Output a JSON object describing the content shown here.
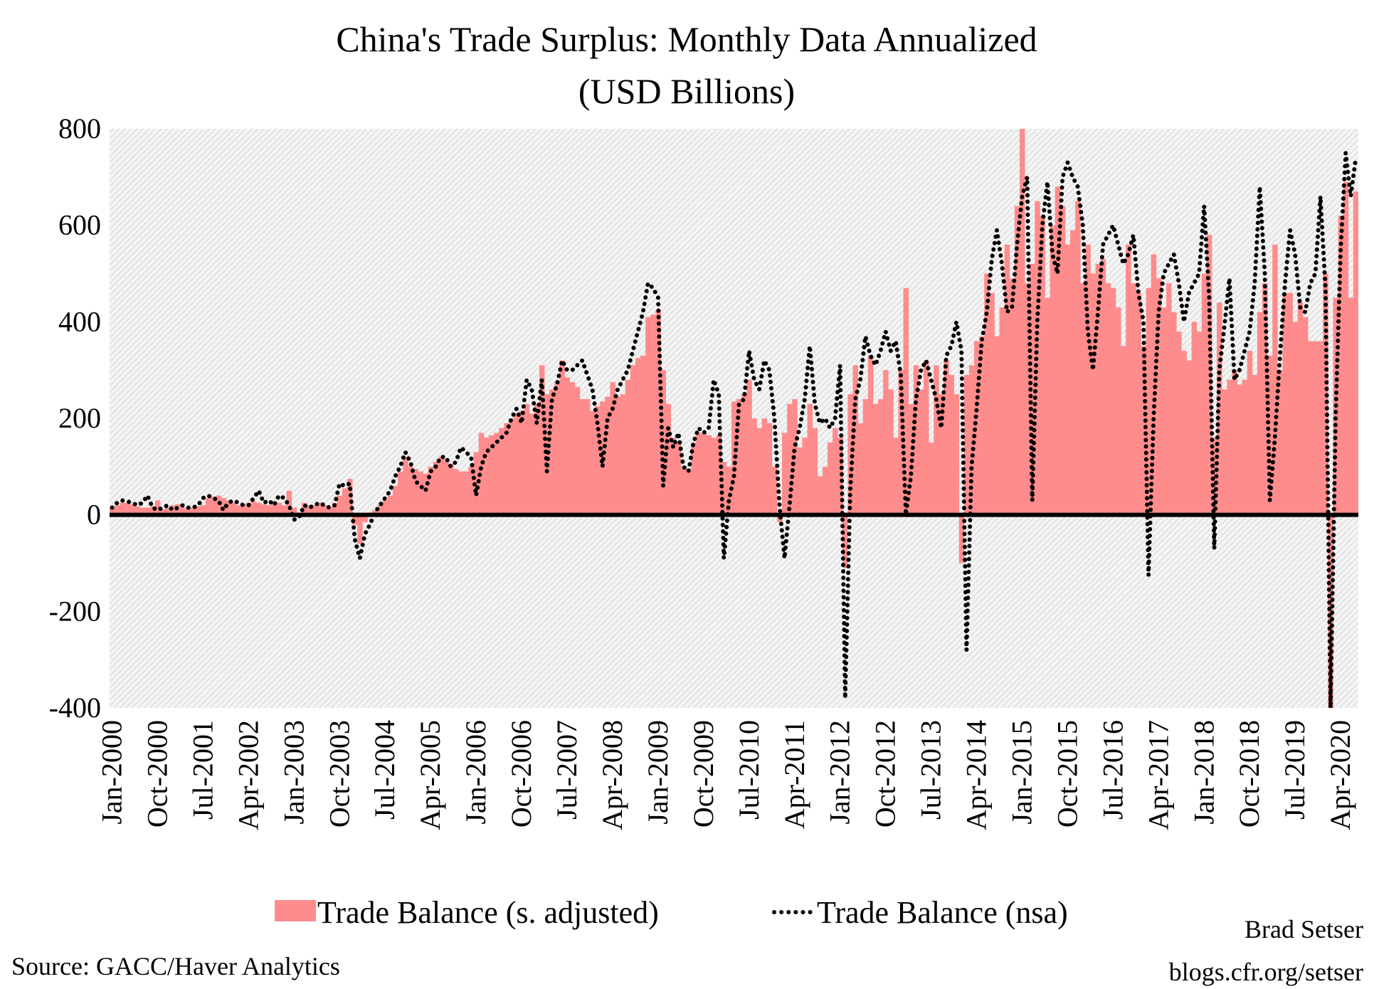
{
  "chart_data": {
    "type": "bar+line",
    "title": "China's Trade Surplus: Monthly Data Annualized",
    "subtitle": "(USD Billions)",
    "xlabel": "",
    "ylabel": "",
    "ylim": [
      -400,
      800
    ],
    "yticks": [
      800,
      600,
      400,
      200,
      0,
      -200,
      -400
    ],
    "x_start": "Jan-2000",
    "x_end": "Jul-2020",
    "xtick_labels": [
      "Jan-2000",
      "Oct-2000",
      "Jul-2001",
      "Apr-2002",
      "Jan-2003",
      "Oct-2003",
      "Jul-2004",
      "Apr-2005",
      "Jan-2006",
      "Oct-2006",
      "Jul-2007",
      "Apr-2008",
      "Jan-2009",
      "Oct-2009",
      "Jul-2010",
      "Apr-2011",
      "Jan-2012",
      "Oct-2012",
      "Jul-2013",
      "Apr-2014",
      "Jan-2015",
      "Oct-2015",
      "Jul-2016",
      "Apr-2017",
      "Jan-2018",
      "Oct-2018",
      "Jul-2019",
      "Apr-2020"
    ],
    "grid": false,
    "legend_position": "bottom",
    "series": [
      {
        "name": "Trade Balance (s. adjusted)",
        "kind": "bar",
        "color": "#FF8C8C",
        "values": [
          15,
          20,
          25,
          25,
          22,
          18,
          15,
          15,
          18,
          30,
          12,
          15,
          20,
          22,
          15,
          12,
          15,
          18,
          20,
          35,
          38,
          40,
          35,
          30,
          25,
          20,
          22,
          25,
          28,
          25,
          22,
          20,
          22,
          25,
          20,
          50,
          15,
          5,
          25,
          20,
          20,
          25,
          20,
          15,
          25,
          40,
          55,
          75,
          -20,
          -60,
          -15,
          5,
          10,
          20,
          30,
          40,
          60,
          90,
          120,
          100,
          95,
          90,
          85,
          100,
          110,
          120,
          115,
          105,
          95,
          90,
          90,
          100,
          130,
          170,
          160,
          165,
          170,
          180,
          190,
          200,
          210,
          215,
          230,
          210,
          230,
          310,
          250,
          260,
          275,
          320,
          285,
          275,
          265,
          240,
          240,
          215,
          225,
          235,
          245,
          275,
          245,
          250,
          280,
          310,
          325,
          330,
          410,
          415,
          425,
          300,
          230,
          160,
          150,
          100,
          95,
          150,
          170,
          170,
          165,
          160,
          165,
          110,
          100,
          235,
          240,
          250,
          280,
          200,
          180,
          200,
          190,
          100,
          -15,
          170,
          230,
          240,
          140,
          160,
          230,
          180,
          80,
          100,
          150,
          180,
          160,
          -110,
          250,
          310,
          190,
          240,
          330,
          230,
          240,
          300,
          260,
          160,
          300,
          470,
          230,
          310,
          260,
          320,
          150,
          310,
          250,
          320,
          290,
          250,
          -100,
          290,
          310,
          360,
          370,
          500,
          460,
          370,
          430,
          560,
          490,
          640,
          800,
          480,
          520,
          650,
          620,
          450,
          600,
          680,
          640,
          560,
          590,
          650,
          480,
          560,
          500,
          520,
          530,
          480,
          470,
          430,
          350,
          560,
          480,
          460,
          350,
          470,
          540,
          490,
          430,
          480,
          420,
          380,
          340,
          320,
          400,
          380,
          500,
          580,
          160,
          440,
          260,
          280,
          300,
          270,
          280,
          340,
          290,
          420,
          480,
          330,
          560,
          300,
          460,
          460,
          400,
          440,
          410,
          360,
          360,
          360,
          500,
          -400,
          450,
          620,
          690,
          450,
          670
        ]
      },
      {
        "name": "Trade Balance (nsa)",
        "kind": "dotted-line",
        "color": "#000000",
        "values": [
          15,
          25,
          30,
          28,
          25,
          20,
          25,
          40,
          15,
          10,
          15,
          20,
          10,
          15,
          20,
          15,
          15,
          20,
          35,
          40,
          35,
          30,
          10,
          25,
          30,
          25,
          20,
          20,
          35,
          50,
          25,
          30,
          20,
          40,
          35,
          20,
          -10,
          -5,
          20,
          15,
          20,
          25,
          20,
          15,
          20,
          65,
          60,
          65,
          -50,
          -90,
          -40,
          -20,
          5,
          20,
          35,
          50,
          80,
          100,
          130,
          110,
          70,
          60,
          50,
          90,
          100,
          120,
          120,
          100,
          110,
          140,
          130,
          120,
          40,
          100,
          130,
          140,
          150,
          160,
          170,
          200,
          220,
          190,
          280,
          260,
          190,
          280,
          90,
          240,
          270,
          320,
          300,
          300,
          310,
          320,
          290,
          260,
          190,
          100,
          200,
          220,
          260,
          280,
          300,
          340,
          380,
          420,
          480,
          470,
          450,
          60,
          180,
          140,
          170,
          100,
          90,
          150,
          180,
          170,
          180,
          280,
          250,
          -90,
          30,
          80,
          230,
          240,
          340,
          280,
          260,
          320,
          300,
          200,
          20,
          -90,
          20,
          140,
          180,
          240,
          350,
          230,
          190,
          200,
          180,
          200,
          310,
          -380,
          50,
          240,
          280,
          370,
          330,
          310,
          340,
          380,
          340,
          360,
          290,
          0,
          80,
          240,
          300,
          320,
          280,
          240,
          180,
          330,
          350,
          400,
          340,
          -280,
          100,
          220,
          360,
          420,
          530,
          590,
          520,
          420,
          430,
          560,
          660,
          700,
          30,
          400,
          600,
          690,
          540,
          500,
          700,
          730,
          700,
          680,
          600,
          380,
          300,
          420,
          560,
          580,
          600,
          560,
          520,
          540,
          580,
          460,
          400,
          -125,
          200,
          420,
          500,
          520,
          540,
          480,
          400,
          460,
          480,
          500,
          640,
          450,
          -70,
          300,
          390,
          490,
          280,
          300,
          340,
          380,
          480,
          680,
          500,
          30,
          160,
          330,
          480,
          590,
          540,
          430,
          420,
          480,
          500,
          660,
          470,
          -400,
          200,
          550,
          750,
          660,
          740
        ]
      }
    ]
  },
  "footer": {
    "source": "Source: GACC/Haver Analytics",
    "author": "Brad Setser",
    "site": "blogs.cfr.org/setser"
  }
}
